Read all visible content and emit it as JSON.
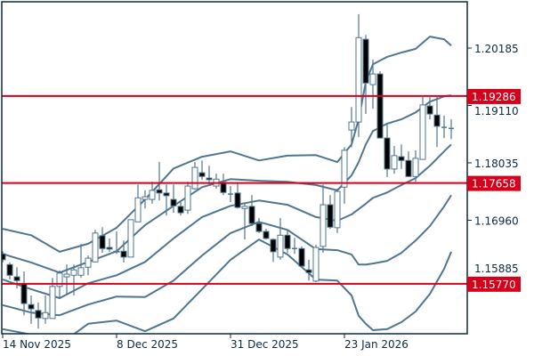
{
  "chart_data": {
    "type": "candlestick",
    "title": "",
    "y_axis": {
      "range": [
        1.14834,
        1.21052
      ],
      "ticks": [
        "1.20185",
        "1.19110",
        "1.18035",
        "1.16960",
        "1.15885"
      ],
      "position": "right"
    },
    "x_axis": {
      "ticks": [
        {
          "label": "14 Nov 2025",
          "index": 0
        },
        {
          "label": "8 Dec 2025",
          "index": 16
        },
        {
          "label": "31 Dec 2025",
          "index": 32
        },
        {
          "label": "23 Jan 2026",
          "index": 48
        }
      ]
    },
    "horizontal_lines": [
      {
        "value": 1.19286,
        "label": "1.19286",
        "color": "#d7001a"
      },
      {
        "value": 1.17658,
        "label": "1.17658",
        "color": "#d7001a"
      },
      {
        "value": 1.1577,
        "label": "1.15770",
        "color": "#d7001a"
      }
    ],
    "colors": {
      "candle": "#4f7690",
      "bearish_fill": "#000000",
      "bullish_fill": "#ffffff",
      "band": "#4f7690",
      "frame": "#0d2a3f"
    },
    "ohlc": [
      [
        1.1633,
        1.1638,
        1.1617,
        1.1622
      ],
      [
        1.1613,
        1.1617,
        1.1585,
        1.1593
      ],
      [
        1.159,
        1.1608,
        1.1568,
        1.1583
      ],
      [
        1.1577,
        1.16,
        1.1518,
        1.154
      ],
      [
        1.1538,
        1.1555,
        1.1502,
        1.153
      ],
      [
        1.1527,
        1.1542,
        1.1493,
        1.1513
      ],
      [
        1.1512,
        1.1555,
        1.1502,
        1.1523
      ],
      [
        1.1512,
        1.1588,
        1.1512,
        1.1572
      ],
      [
        1.1572,
        1.1602,
        1.155,
        1.1597
      ],
      [
        1.159,
        1.1613,
        1.1558,
        1.1595
      ],
      [
        1.1593,
        1.1613,
        1.1555,
        1.1603
      ],
      [
        1.1593,
        1.1652,
        1.1588,
        1.1607
      ],
      [
        1.1608,
        1.163,
        1.1593,
        1.1625
      ],
      [
        1.1618,
        1.1678,
        1.1617,
        1.1672
      ],
      [
        1.1667,
        1.1683,
        1.1635,
        1.1643
      ],
      [
        1.1645,
        1.1662,
        1.1637,
        1.1642
      ],
      [
        1.1638,
        1.1675,
        1.1633,
        1.1637
      ],
      [
        1.1638,
        1.1658,
        1.1617,
        1.1627
      ],
      [
        1.1627,
        1.1697,
        1.1627,
        1.1697
      ],
      [
        1.1693,
        1.1763,
        1.1693,
        1.1738
      ],
      [
        1.1735,
        1.1752,
        1.1718,
        1.174
      ],
      [
        1.1735,
        1.1768,
        1.1727,
        1.1752
      ],
      [
        1.1753,
        1.1805,
        1.1733,
        1.1747
      ],
      [
        1.1747,
        1.1763,
        1.1705,
        1.1742
      ],
      [
        1.1735,
        1.1763,
        1.171,
        1.1723
      ],
      [
        1.1722,
        1.173,
        1.1705,
        1.171
      ],
      [
        1.1715,
        1.1768,
        1.1708,
        1.176
      ],
      [
        1.1755,
        1.1805,
        1.1753,
        1.1795
      ],
      [
        1.1785,
        1.1808,
        1.1772,
        1.1778
      ],
      [
        1.1775,
        1.1798,
        1.1763,
        1.1772
      ],
      [
        1.176,
        1.1783,
        1.1755,
        1.1773
      ],
      [
        1.1767,
        1.1783,
        1.1743,
        1.1748
      ],
      [
        1.1745,
        1.176,
        1.173,
        1.1745
      ],
      [
        1.1747,
        1.1767,
        1.1718,
        1.172
      ],
      [
        1.1718,
        1.1727,
        1.166,
        1.1722
      ],
      [
        1.1722,
        1.1743,
        1.1685,
        1.169
      ],
      [
        1.169,
        1.17,
        1.1672,
        1.1675
      ],
      [
        1.1675,
        1.168,
        1.166,
        1.1662
      ],
      [
        1.166,
        1.1662,
        1.1618,
        1.1637
      ],
      [
        1.1627,
        1.17,
        1.1622,
        1.1668
      ],
      [
        1.1668,
        1.1677,
        1.1635,
        1.1643
      ],
      [
        1.1643,
        1.1663,
        1.1633,
        1.1643
      ],
      [
        1.1643,
        1.1647,
        1.1608,
        1.161
      ],
      [
        1.1603,
        1.1622,
        1.1583,
        1.1598
      ],
      [
        1.1582,
        1.165,
        1.158,
        1.1645
      ],
      [
        1.1647,
        1.1763,
        1.1635,
        1.1725
      ],
      [
        1.1725,
        1.1743,
        1.168,
        1.1683
      ],
      [
        1.1682,
        1.1755,
        1.1672,
        1.175
      ],
      [
        1.1758,
        1.1833,
        1.1727,
        1.1827
      ],
      [
        1.1865,
        1.1908,
        1.1833,
        1.188
      ],
      [
        1.188,
        1.2082,
        1.1852,
        1.2038
      ],
      [
        1.2035,
        1.2043,
        1.1895,
        1.1953
      ],
      [
        1.195,
        1.1997,
        1.1905,
        1.197
      ],
      [
        1.197,
        1.1975,
        1.185,
        1.185
      ],
      [
        1.185,
        1.1875,
        1.1777,
        1.1792
      ],
      [
        1.1792,
        1.1835,
        1.1783,
        1.1817
      ],
      [
        1.1815,
        1.1838,
        1.1792,
        1.1808
      ],
      [
        1.1808,
        1.1825,
        1.1777,
        1.1778
      ],
      [
        1.1778,
        1.1827,
        1.1768,
        1.1812
      ],
      [
        1.181,
        1.1927,
        1.181,
        1.1912
      ],
      [
        1.191,
        1.1927,
        1.1885,
        1.1895
      ],
      [
        1.1893,
        1.1927,
        1.1833,
        1.1872
      ],
      [
        1.187,
        1.1892,
        1.185,
        1.187
      ],
      [
        1.1868,
        1.1885,
        1.1848,
        1.1868
      ]
    ],
    "bands": {
      "index": [
        0,
        4,
        8,
        12,
        16,
        20,
        24,
        28,
        32,
        36,
        40,
        44,
        47,
        49,
        50,
        51,
        52,
        54,
        56,
        58,
        60,
        62,
        63
      ],
      "series": [
        {
          "name": "upper2",
          "values": [
            1.168,
            1.1668,
            1.1637,
            1.1652,
            1.1682,
            1.1735,
            1.1793,
            1.1815,
            1.1825,
            1.1808,
            1.1817,
            1.1818,
            1.1805,
            1.1838,
            1.1885,
            1.1955,
            1.1988,
            1.2002,
            1.201,
            1.2017,
            1.204,
            1.2035,
            1.2023
          ]
        },
        {
          "name": "upper1",
          "values": [
            1.1633,
            1.1617,
            1.1598,
            1.1618,
            1.1638,
            1.1687,
            1.1723,
            1.1758,
            1.1773,
            1.177,
            1.1768,
            1.1762,
            1.1752,
            1.178,
            1.1805,
            1.1838,
            1.1863,
            1.1877,
            1.1885,
            1.1898,
            1.1918,
            1.1928,
            1.193
          ]
        },
        {
          "name": "middle",
          "values": [
            1.1585,
            1.1567,
            1.155,
            1.1578,
            1.1593,
            1.1618,
            1.1662,
            1.1702,
            1.1723,
            1.1733,
            1.1725,
            1.1702,
            1.1695,
            1.1707,
            1.1717,
            1.1727,
            1.1738,
            1.1748,
            1.1762,
            1.1775,
            1.1798,
            1.1825,
            1.1838
          ]
        },
        {
          "name": "lower1",
          "values": [
            1.1537,
            1.1523,
            1.1518,
            1.1538,
            1.1553,
            1.1552,
            1.1583,
            1.163,
            1.1672,
            1.1693,
            1.1678,
            1.1642,
            1.164,
            1.1632,
            1.1613,
            1.1613,
            1.1615,
            1.162,
            1.1635,
            1.1658,
            1.1685,
            1.1722,
            1.1743
          ]
        },
        {
          "name": "lower2",
          "values": [
            1.1492,
            1.1482,
            1.1463,
            1.1502,
            1.1508,
            1.1488,
            1.1512,
            1.1567,
            1.1622,
            1.166,
            1.1632,
            1.1585,
            1.1583,
            1.1555,
            1.1517,
            1.1502,
            1.149,
            1.1492,
            1.1505,
            1.1525,
            1.1558,
            1.1605,
            1.1637
          ]
        }
      ]
    }
  }
}
